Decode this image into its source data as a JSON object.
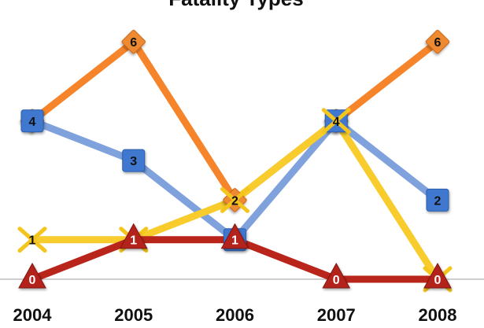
{
  "chart_data": {
    "type": "line",
    "title": "Fatality Types",
    "categories": [
      "2004",
      "2005",
      "2006",
      "2007",
      "2008"
    ],
    "series": [
      {
        "values": [
          4,
          6,
          2,
          4,
          6
        ],
        "color": "#f5842a",
        "marker": "diamond",
        "marker_color": "#ee8a32"
      },
      {
        "values": [
          4,
          3,
          1,
          4,
          2
        ],
        "color": "#7fa2dd",
        "marker": "square",
        "marker_color": "#3f78cf"
      },
      {
        "values": [
          1,
          1,
          2,
          4,
          0
        ],
        "color": "#f7cc2c",
        "marker": "x",
        "marker_color": "#f4c51d"
      },
      {
        "values": [
          0,
          1,
          1,
          0,
          0
        ],
        "color": "#b9241b",
        "marker": "triangle",
        "marker_color": "#b4231a"
      }
    ],
    "ylim": [
      0,
      6.5
    ],
    "grid": false,
    "baseline_color": "#bdbdbd",
    "xlabel": "",
    "ylabel": ""
  }
}
